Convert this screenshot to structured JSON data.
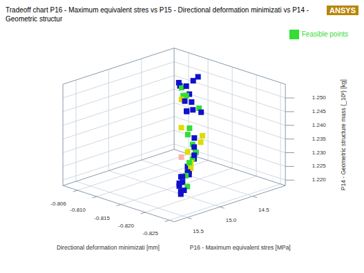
{
  "chart_data": {
    "type": "scatter",
    "title": "Tradeoff chart P16 - Maximum equivalent stres vs P15 - Directional deformation minimizati vs P14 - Geometric structur",
    "annotations": [
      "ANSYS"
    ],
    "xlabel": "P16 - Maximum equivalent stres [MPa]",
    "ylabel": "Directional deformation minimizati [mm]",
    "zlabel": "P14 - Geometric structure mass (_10³) [kg]",
    "xlim": [
      14.0,
      15.7
    ],
    "ylim": [
      -0.803,
      -0.826
    ],
    "zlim": [
      1.218,
      1.255
    ],
    "xticks": [
      14.5,
      {
        "value": 15.0,
        "label": "15.0"
      },
      15.5
    ],
    "yticks": [
      -0.825,
      {
        "value": -0.82,
        "label": "-0.820"
      },
      -0.815,
      {
        "value": -0.81,
        "label": "-0.810"
      },
      -0.806
    ],
    "zticks": [
      {
        "value": 1.22,
        "label": "1.220"
      },
      1.225,
      {
        "value": 1.23,
        "label": "1.230"
      },
      1.235,
      {
        "value": 1.24,
        "label": "1.240"
      },
      1.245,
      {
        "value": 1.25,
        "label": "1.250"
      }
    ],
    "grid": true,
    "series": [
      {
        "name": "Feasible points",
        "color": "#33dd33",
        "marker": "square",
        "x": [
          14.65,
          14.55,
          14.58,
          14.6,
          14.62,
          14.52,
          14.48,
          14.3,
          14.7,
          14.7,
          14.65,
          14.58,
          14.6,
          14.62,
          14.55,
          14.4,
          14.8,
          14.85,
          14.9,
          14.75,
          14.8,
          14.85,
          14.9,
          14.95,
          15.0,
          15.05,
          15.0,
          15.1,
          15.05,
          15.15,
          14.95,
          15.2,
          15.1,
          15.25,
          15.15,
          15.2,
          15.25,
          15.3,
          15.35,
          15.3,
          15.35,
          15.4,
          15.35,
          15.4,
          15.45,
          15.4,
          15.45,
          15.22,
          14.3
        ],
        "y": [
          -0.813,
          -0.812,
          -0.814,
          -0.813,
          -0.815,
          -0.811,
          -0.812,
          -0.812,
          -0.815,
          -0.814,
          -0.814,
          -0.816,
          -0.815,
          -0.814,
          -0.813,
          -0.814,
          -0.817,
          -0.816,
          -0.818,
          -0.819,
          -0.818,
          -0.82,
          -0.819,
          -0.82,
          -0.821,
          -0.82,
          -0.821,
          -0.822,
          -0.821,
          -0.822,
          -0.82,
          -0.822,
          -0.821,
          -0.823,
          -0.822,
          -0.822,
          -0.823,
          -0.823,
          -0.823,
          -0.822,
          -0.823,
          -0.823,
          -0.824,
          -0.823,
          -0.824,
          -0.824,
          -0.824,
          -0.821,
          -0.811
        ],
        "z": [
          1.252,
          1.25,
          1.249,
          1.248,
          1.247,
          1.251,
          1.25,
          1.252,
          1.25,
          1.248,
          1.247,
          1.245,
          1.244,
          1.243,
          1.242,
          1.241,
          1.24,
          1.24,
          1.239,
          1.238,
          1.237,
          1.237,
          1.236,
          1.236,
          1.235,
          1.235,
          1.235,
          1.234,
          1.233,
          1.233,
          1.233,
          1.232,
          1.232,
          1.231,
          1.231,
          1.23,
          1.23,
          1.23,
          1.23,
          1.229,
          1.228,
          1.228,
          1.227,
          1.227,
          1.226,
          1.226,
          1.225,
          1.235,
          1.25
        ],
        "colors": [
          "#1010cc",
          "#33dd33",
          "#1010cc",
          "#33dd33",
          "#1010cc",
          "#1010cc",
          "#1010cc",
          "#1010cc",
          "#33dd33",
          "#dddd00",
          "#1010cc",
          "#33dd33",
          "#1010cc",
          "#1010cc",
          "#1010cc",
          "#1010cc",
          "#33dd33",
          "#dddd00",
          "#33dd33",
          "#dddd00",
          "#1010cc",
          "#dddd00",
          "#33dd33",
          "#1010cc",
          "#1010cc",
          "#dddd00",
          "#33dd33",
          "#1010cc",
          "#33dd33",
          "#dddd00",
          "#1010cc",
          "#1010cc",
          "#33dd33",
          "#1010cc",
          "#dddd00",
          "#1010cc",
          "#1010cc",
          "#33dd33",
          "#1010cc",
          "#1010cc",
          "#1010cc",
          "#1010cc",
          "#33dd33",
          "#1010cc",
          "#1010cc",
          "#1010cc",
          "#1010cc",
          "#ffb0b0",
          "#1010cc"
        ]
      }
    ]
  }
}
